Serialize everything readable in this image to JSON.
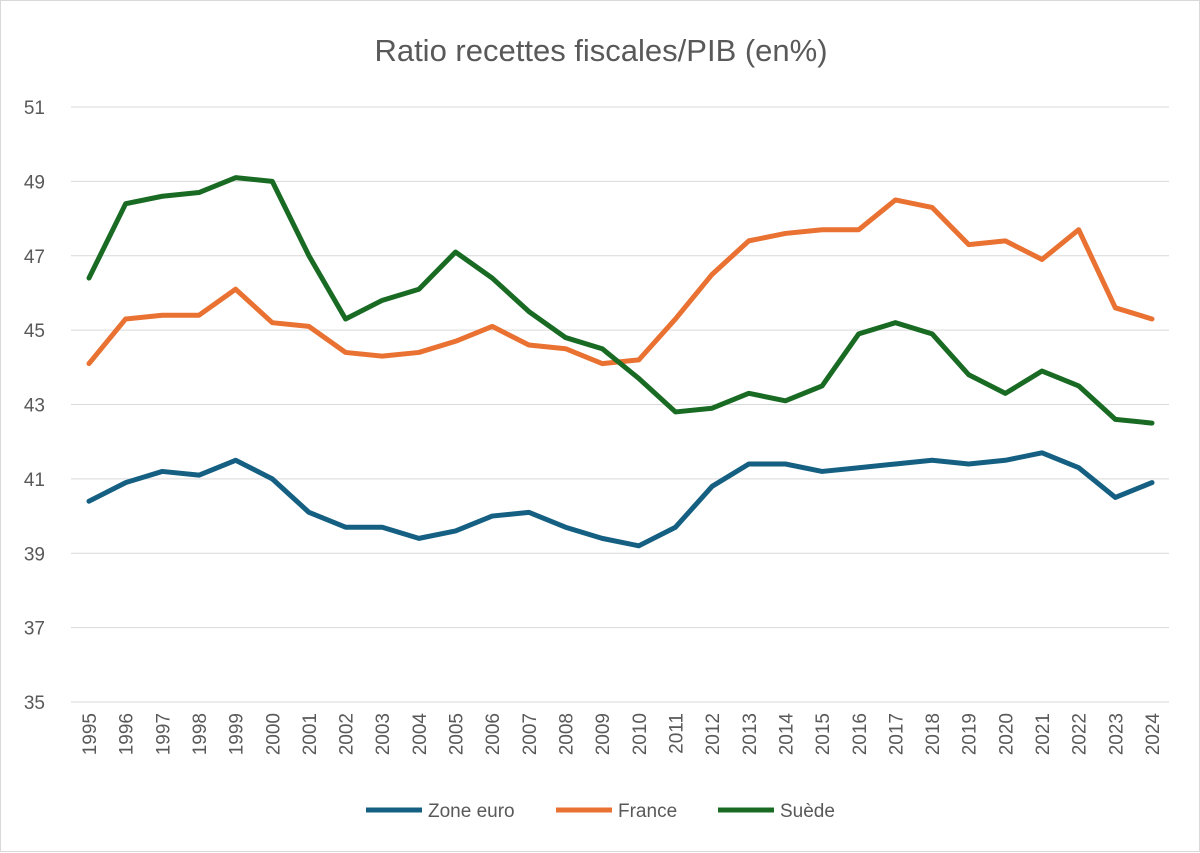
{
  "chart_data": {
    "type": "line",
    "title": "Ratio recettes fiscales/PIB (en%)",
    "xlabel": "",
    "ylabel": "",
    "ylim": [
      35,
      51
    ],
    "yticks": [
      35,
      37,
      39,
      41,
      43,
      45,
      47,
      49,
      51
    ],
    "grid": true,
    "legend": "bottom",
    "categories": [
      "1995",
      "1996",
      "1997",
      "1998",
      "1999",
      "2000",
      "2001",
      "2002",
      "2003",
      "2004",
      "2005",
      "2006",
      "2007",
      "2008",
      "2009",
      "2010",
      "2011",
      "2012",
      "2013",
      "2014",
      "2015",
      "2016",
      "2017",
      "2018",
      "2019",
      "2020",
      "2021",
      "2022",
      "2023",
      "2024"
    ],
    "series": [
      {
        "name": "Zone euro",
        "color": "#156082",
        "values": [
          40.4,
          40.9,
          41.2,
          41.1,
          41.5,
          41.0,
          40.1,
          39.7,
          39.7,
          39.4,
          39.6,
          40.0,
          40.1,
          39.7,
          39.4,
          39.2,
          39.7,
          40.8,
          41.4,
          41.4,
          41.2,
          41.3,
          41.4,
          41.5,
          41.4,
          41.5,
          41.7,
          41.3,
          40.5,
          40.9
        ]
      },
      {
        "name": "France",
        "color": "#E97132",
        "values": [
          44.1,
          45.3,
          45.4,
          45.4,
          46.1,
          45.2,
          45.1,
          44.4,
          44.3,
          44.4,
          44.7,
          45.1,
          44.6,
          44.5,
          44.1,
          44.2,
          45.3,
          46.5,
          47.4,
          47.6,
          47.7,
          47.7,
          48.5,
          48.3,
          47.3,
          47.4,
          46.9,
          47.7,
          45.6,
          45.3
        ]
      },
      {
        "name": "Suède",
        "color": "#196B24",
        "values": [
          46.4,
          48.4,
          48.6,
          48.7,
          49.1,
          49.0,
          47.0,
          45.3,
          45.8,
          46.1,
          47.1,
          46.4,
          45.5,
          44.8,
          44.5,
          43.7,
          42.8,
          42.9,
          43.3,
          43.1,
          43.5,
          44.9,
          45.2,
          44.9,
          43.8,
          43.3,
          43.9,
          43.5,
          42.6,
          42.5
        ]
      }
    ]
  }
}
